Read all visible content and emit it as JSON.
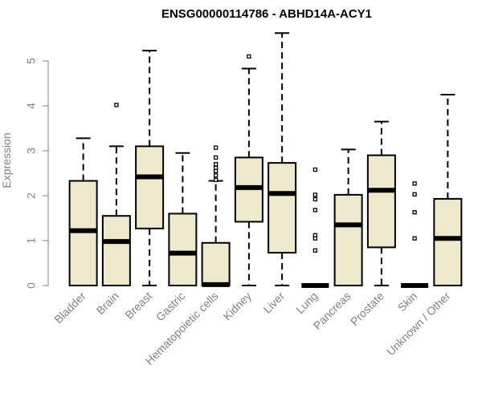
{
  "chart_data": {
    "type": "boxplot",
    "title": "ENSG00000114786 - ABHD14A-ACY1",
    "xlabel": "",
    "ylabel": "Expression",
    "ylim": [
      0,
      5.6
    ],
    "yticks": [
      0,
      1,
      2,
      3,
      4,
      5
    ],
    "categories": [
      "Bladder",
      "Brain",
      "Breast",
      "Gastric",
      "Hematopoietic cells",
      "Kidney",
      "Liver",
      "Lung",
      "Pancreas",
      "Prostate",
      "Skin",
      "Unknown / Other"
    ],
    "boxes": [
      {
        "name": "Bladder",
        "whisker_low": 0.0,
        "q1": 0.0,
        "median": 1.22,
        "q3": 2.33,
        "whisker_high": 3.28,
        "outliers": []
      },
      {
        "name": "Brain",
        "whisker_low": 0.0,
        "q1": 0.0,
        "median": 0.98,
        "q3": 1.55,
        "whisker_high": 3.1,
        "outliers": [
          4.02
        ]
      },
      {
        "name": "Breast",
        "whisker_low": 0.0,
        "q1": 1.27,
        "median": 2.42,
        "q3": 3.1,
        "whisker_high": 5.23,
        "outliers": []
      },
      {
        "name": "Gastric",
        "whisker_low": 0.0,
        "q1": 0.0,
        "median": 0.72,
        "q3": 1.6,
        "whisker_high": 2.95,
        "outliers": []
      },
      {
        "name": "Hematopoietic cells",
        "whisker_low": 0.0,
        "q1": 0.0,
        "median": 0.02,
        "q3": 0.95,
        "whisker_high": 2.33,
        "outliers": [
          2.35,
          2.45,
          2.55,
          2.62,
          2.7,
          2.85,
          3.07
        ]
      },
      {
        "name": "Kidney",
        "whisker_low": 0.0,
        "q1": 1.42,
        "median": 2.18,
        "q3": 2.85,
        "whisker_high": 4.83,
        "outliers": [
          5.1
        ]
      },
      {
        "name": "Liver",
        "whisker_low": 0.0,
        "q1": 0.73,
        "median": 2.05,
        "q3": 2.73,
        "whisker_high": 5.62,
        "outliers": []
      },
      {
        "name": "Lung",
        "whisker_low": 0.0,
        "q1": 0.0,
        "median": 0.0,
        "q3": 0.0,
        "whisker_high": 0.0,
        "outliers": [
          0.78,
          1.05,
          1.12,
          1.68,
          1.92,
          2.02,
          2.58
        ]
      },
      {
        "name": "Pancreas",
        "whisker_low": 0.0,
        "q1": 0.0,
        "median": 1.35,
        "q3": 2.02,
        "whisker_high": 3.03,
        "outliers": []
      },
      {
        "name": "Prostate",
        "whisker_low": 0.0,
        "q1": 0.85,
        "median": 2.12,
        "q3": 2.9,
        "whisker_high": 3.65,
        "outliers": []
      },
      {
        "name": "Skin",
        "whisker_low": 0.0,
        "q1": 0.0,
        "median": 0.0,
        "q3": 0.0,
        "whisker_high": 0.0,
        "outliers": [
          1.05,
          1.63,
          2.03,
          2.27
        ]
      },
      {
        "name": "Unknown / Other",
        "whisker_low": 0.0,
        "q1": 0.0,
        "median": 1.05,
        "q3": 1.93,
        "whisker_high": 4.25,
        "outliers": []
      }
    ],
    "box_fill": "#EEE8CD",
    "box_stroke": "#000000",
    "axis_color": "#808080"
  }
}
